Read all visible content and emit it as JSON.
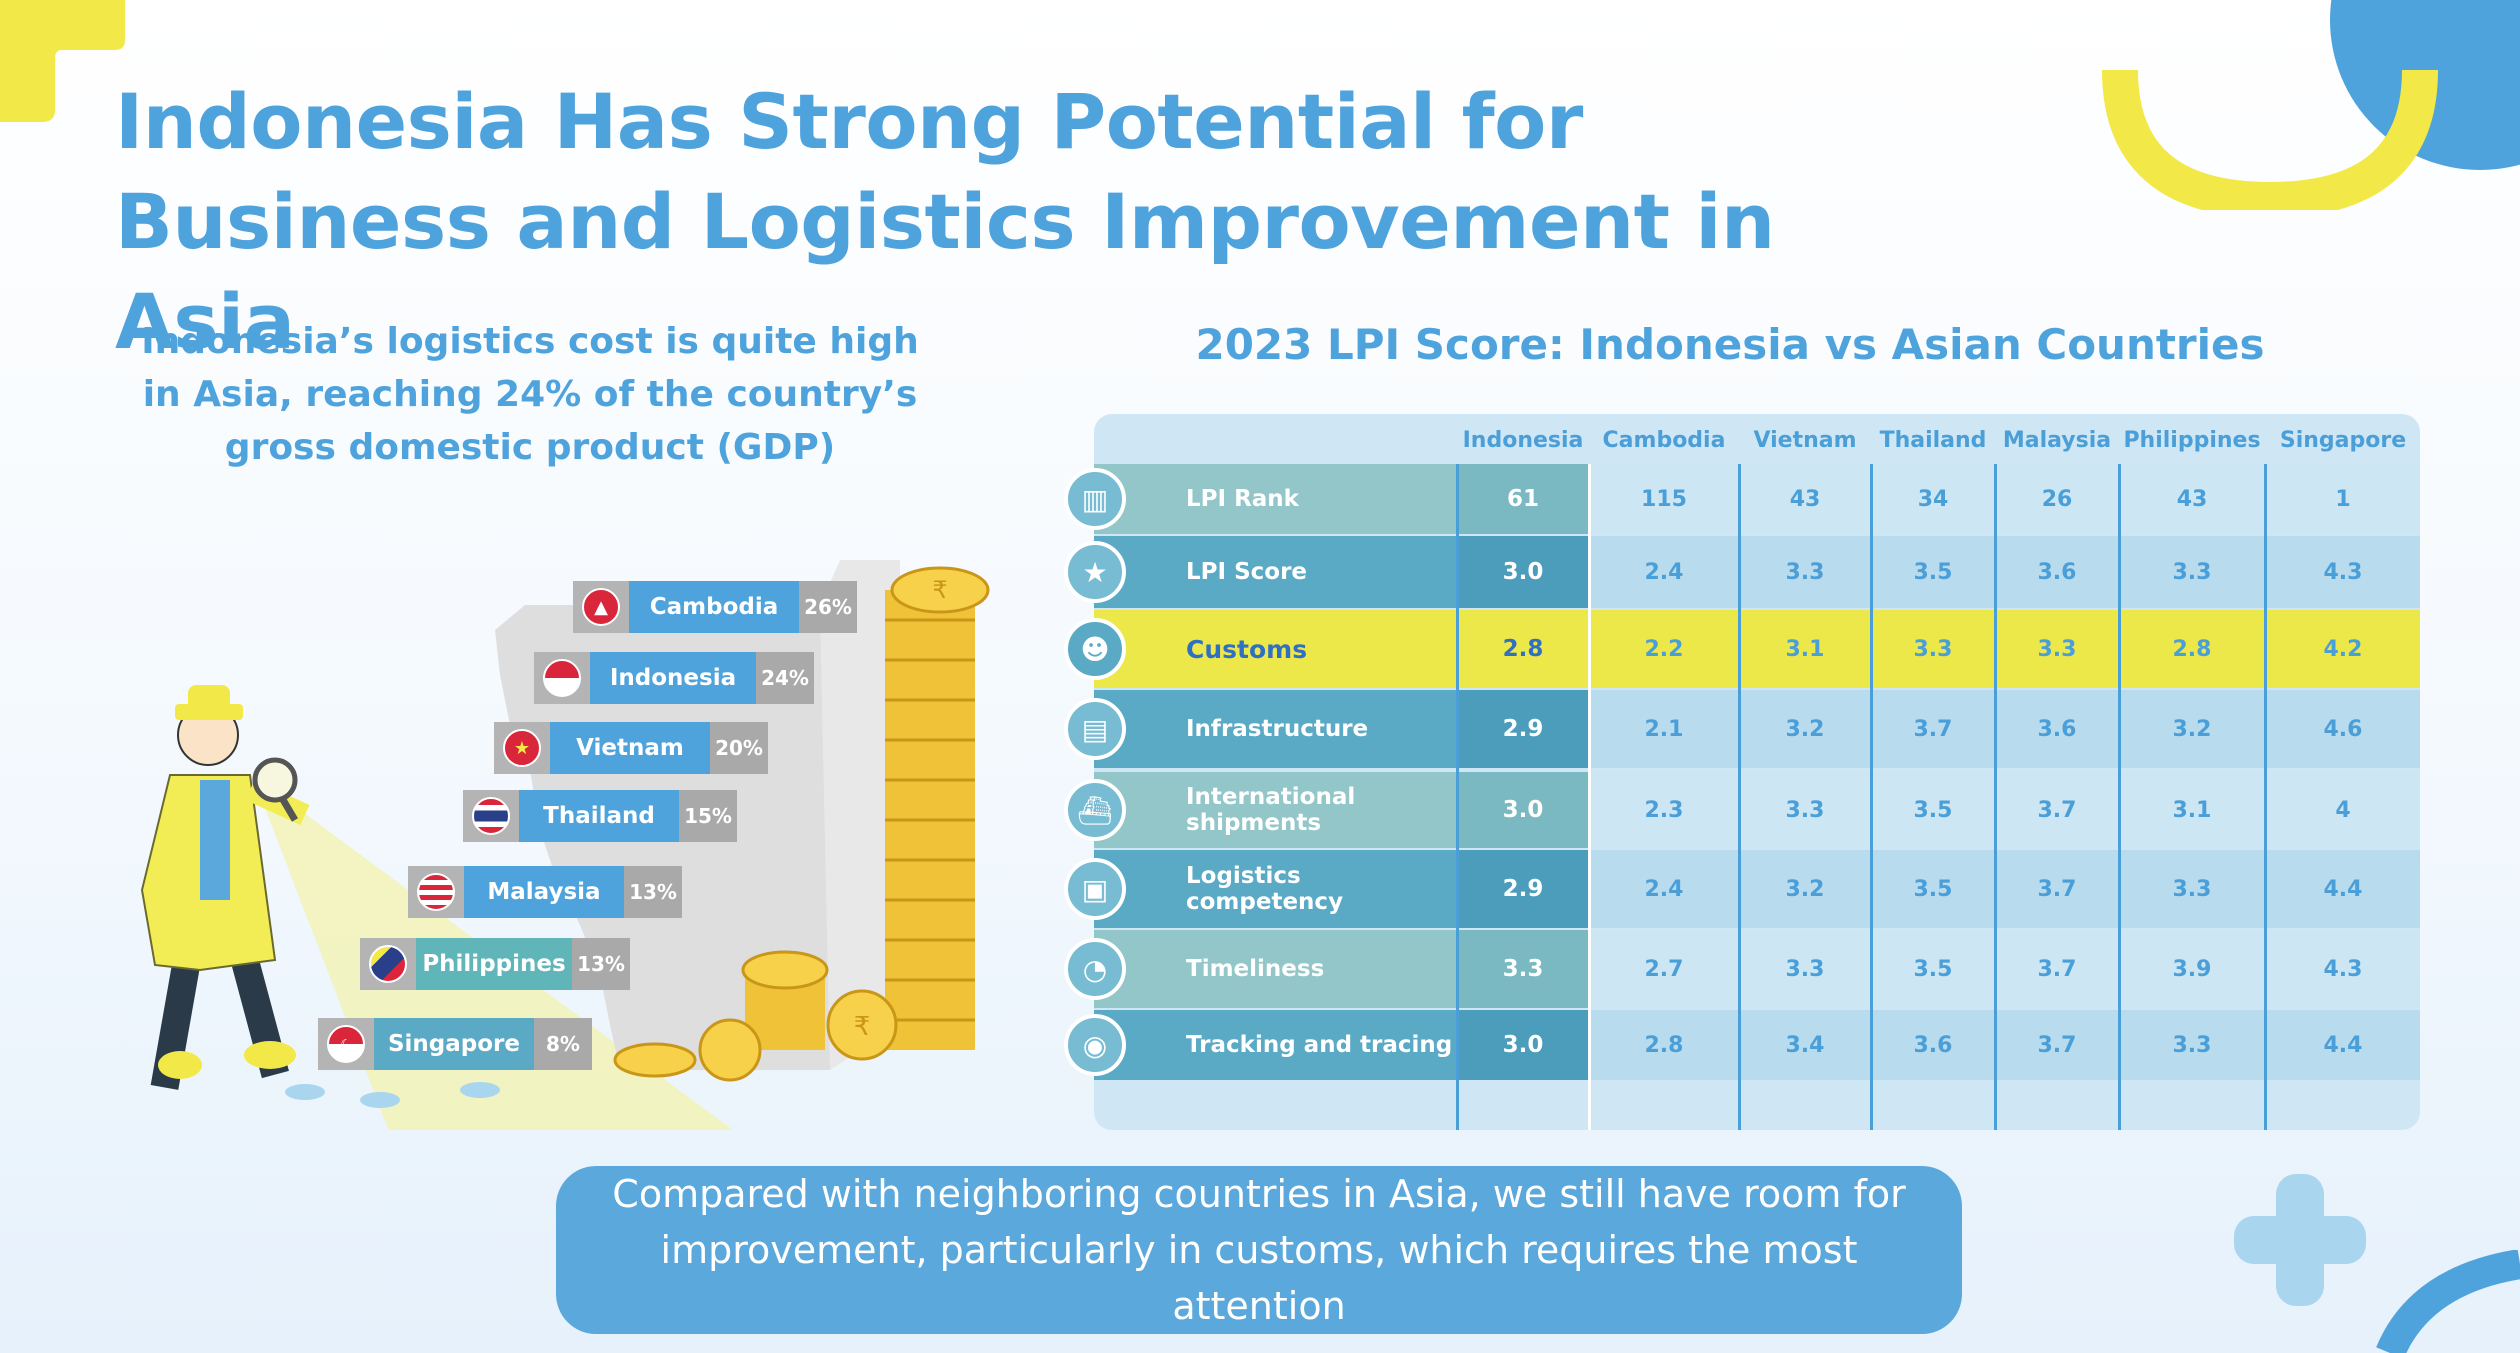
{
  "title": "Indonesia Has Strong Potential for Business and Logistics Improvement in Asia",
  "left_subtitle": "Indonesia’s logistics cost is quite high in Asia, reaching 24% of the country’s gross domestic product (GDP)",
  "steps": [
    {
      "country": "Cambodia",
      "percent": "26%"
    },
    {
      "country": "Indonesia",
      "percent": "24%"
    },
    {
      "country": "Vietnam",
      "percent": "20%"
    },
    {
      "country": "Thailand",
      "percent": "15%"
    },
    {
      "country": "Malaysia",
      "percent": "13%"
    },
    {
      "country": "Philippines",
      "percent": "13%"
    },
    {
      "country": "Singapore",
      "percent": "8%"
    }
  ],
  "table": {
    "title": "2023 LPI Score: Indonesia vs Asian Countries",
    "columns": [
      "Indonesia",
      "Cambodia",
      "Vietnam",
      "Thailand",
      "Malaysia",
      "Philippines",
      "Singapore"
    ],
    "rows": [
      {
        "label": "LPI Rank",
        "icon": "podium-icon",
        "values": [
          "61",
          "115",
          "43",
          "34",
          "26",
          "43",
          "1"
        ]
      },
      {
        "label": "LPI Score",
        "icon": "star-icon",
        "values": [
          "3.0",
          "2.4",
          "3.3",
          "3.5",
          "3.6",
          "3.3",
          "4.3"
        ]
      },
      {
        "label": "Customs",
        "icon": "customs-officer-icon",
        "values": [
          "2.8",
          "2.2",
          "3.1",
          "3.3",
          "3.3",
          "2.8",
          "4.2"
        ],
        "highlight": true
      },
      {
        "label": "Infrastructure",
        "icon": "building-crane-icon",
        "values": [
          "2.9",
          "2.1",
          "3.2",
          "3.7",
          "3.6",
          "3.2",
          "4.6"
        ]
      },
      {
        "label": "International shipments",
        "icon": "cargo-ship-icon",
        "values": [
          "3.0",
          "2.3",
          "3.3",
          "3.5",
          "3.7",
          "3.1",
          "4"
        ]
      },
      {
        "label": "Logistics competency",
        "icon": "package-box-icon",
        "values": [
          "2.9",
          "2.4",
          "3.2",
          "3.5",
          "3.7",
          "3.3",
          "4.4"
        ]
      },
      {
        "label": "Timeliness",
        "icon": "clock-icon",
        "values": [
          "3.3",
          "2.7",
          "3.3",
          "3.5",
          "3.7",
          "3.9",
          "4.3"
        ]
      },
      {
        "label": "Tracking and tracing",
        "icon": "location-pin-icon",
        "values": [
          "3.0",
          "2.8",
          "3.4",
          "3.6",
          "3.7",
          "3.3",
          "4.4"
        ]
      }
    ]
  },
  "callout": "Compared with neighboring countries in Asia, we still have room for improvement, particularly in customs, which requires the most attention",
  "colors": {
    "accent_blue": "#4fa3dc",
    "highlight_yellow": "#ece84a",
    "label_teal": "#5aa9c5",
    "coin_gold": "#f0c238"
  }
}
